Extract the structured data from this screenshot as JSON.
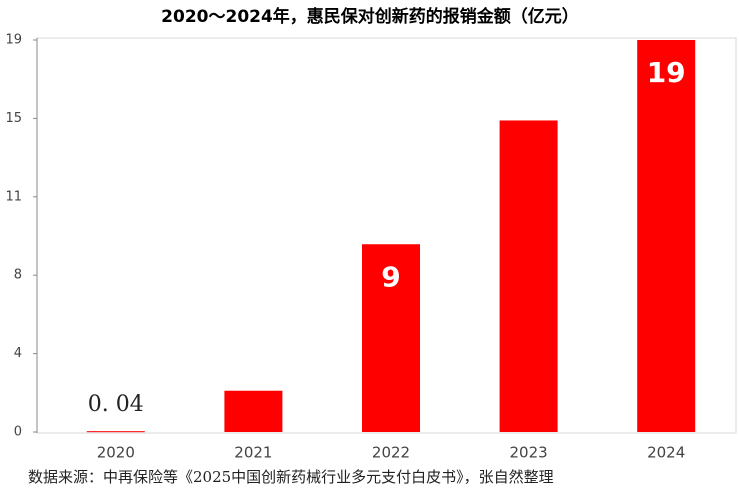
{
  "chart_data": {
    "type": "bar",
    "title": "2020～2024年，惠民保对创新药的报销金额（亿元）",
    "categories": [
      "2020",
      "2021",
      "2022",
      "2023",
      "2024"
    ],
    "values": [
      0.04,
      2.0,
      9.1,
      15.1,
      19
    ],
    "value_labels": [
      "0. 04",
      null,
      "9",
      null,
      "19"
    ],
    "color": "#ff0000",
    "ylim": [
      0,
      19
    ],
    "yticks": [
      0,
      {
        "value": 3.8,
        "label": "4"
      },
      {
        "value": 7.6,
        "label": "8"
      },
      {
        "value": 11.4,
        "label": "11"
      },
      {
        "value": 15.2,
        "label": "15"
      },
      19
    ],
    "grid": false,
    "source": "数据来源：中再保险等《2025中国创新药械行业多元支付白皮书》，张自然整理"
  }
}
